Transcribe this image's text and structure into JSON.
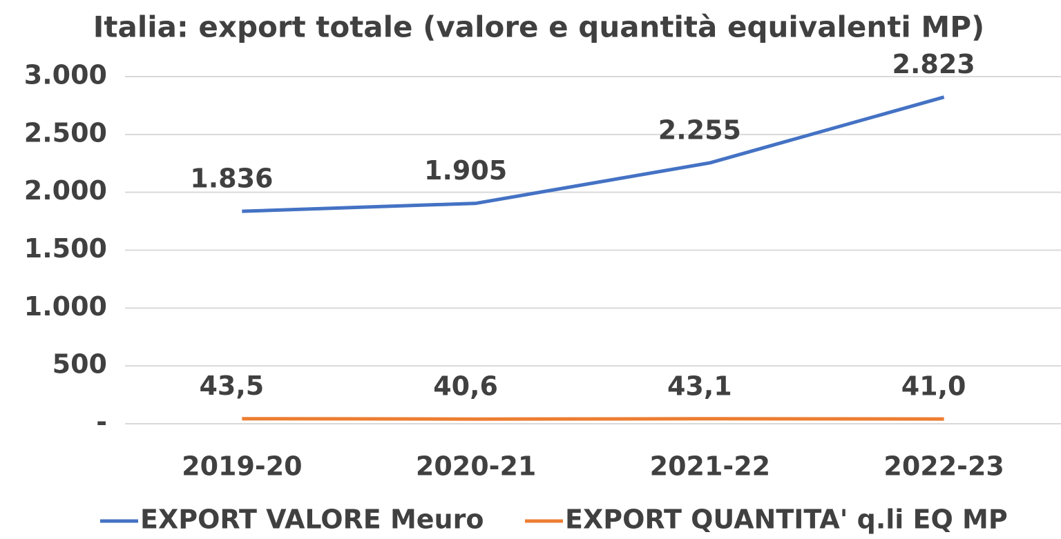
{
  "chart_data": {
    "type": "line",
    "title": "Italia: export totale (valore e quantità equivalenti MP)",
    "categories": [
      "2019-20",
      "2020-21",
      "2021-22",
      "2022-23"
    ],
    "series": [
      {
        "name": "EXPORT VALORE Meuro",
        "color": "#4472c4",
        "values": [
          1836,
          1905,
          2255,
          2823
        ],
        "value_labels": [
          "1.836",
          "1.905",
          "2.255",
          "2.823"
        ]
      },
      {
        "name": "EXPORT QUANTITA' q.li EQ MP",
        "color": "#ed7d31",
        "values": [
          43.5,
          40.6,
          43.1,
          41.0
        ],
        "value_labels": [
          "43,5",
          "40,6",
          "43,1",
          "41,0"
        ]
      }
    ],
    "ylim": [
      0,
      3000
    ],
    "yticks": [
      {
        "value": 0,
        "label": "-"
      },
      500,
      {
        "value": 1000,
        "label": "1.000"
      },
      {
        "value": 1500,
        "label": "1.500"
      },
      {
        "value": 2000,
        "label": "2.000"
      },
      {
        "value": 2500,
        "label": "2.500"
      },
      {
        "value": 3000,
        "label": "3.000"
      }
    ],
    "grid": true,
    "legend": "bottom"
  }
}
